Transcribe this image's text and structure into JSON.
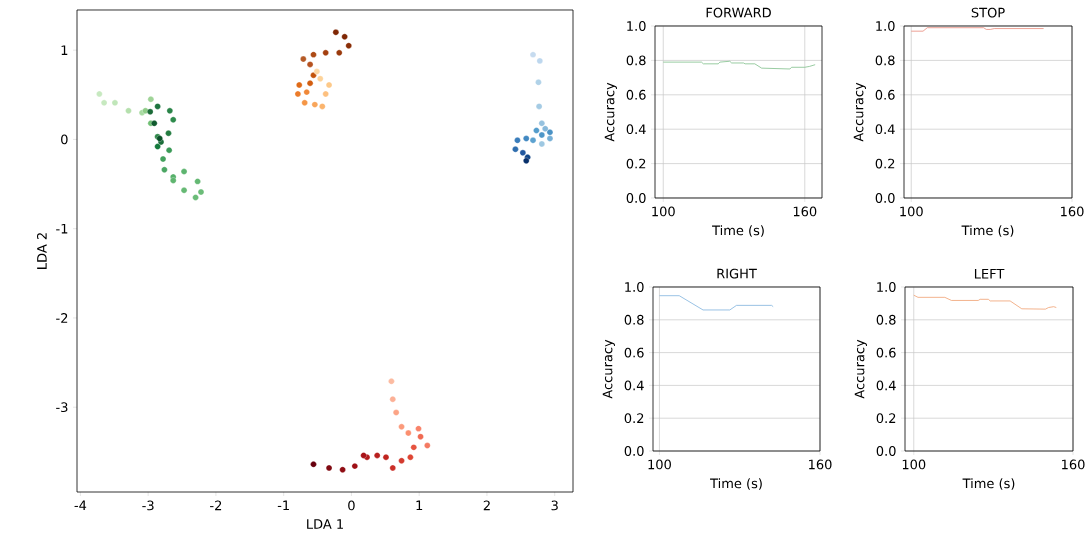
{
  "chart_data": [
    {
      "type": "scatter",
      "xlabel": "LDA 1",
      "ylabel": "LDA 2",
      "marker": "circle",
      "xlim": [
        -4.05,
        3.27
      ],
      "ylim": [
        -3.95,
        1.45
      ],
      "xticks": [
        -4,
        -3,
        -2,
        -1,
        0,
        1,
        2,
        3
      ],
      "yticks": [
        -3,
        -2,
        -1,
        0,
        1
      ],
      "series": [
        {
          "x": [
            -3.72,
            -3.65,
            -3.49,
            -3.29,
            -3.09,
            -2.96,
            -3.04,
            -2.96,
            -2.86,
            -2.81,
            -2.7,
            -2.63,
            -2.68,
            -2.86,
            -2.97,
            -2.91,
            -2.83,
            -2.86,
            -2.69,
            -2.78,
            -2.76,
            -2.63,
            -2.47,
            -2.27,
            -2.22,
            -2.3,
            -2.47,
            -2.63
          ],
          "values": [
            0.51,
            0.41,
            0.41,
            0.32,
            0.3,
            0.45,
            0.32,
            0.18,
            0.03,
            -0.03,
            0.07,
            0.22,
            0.32,
            0.37,
            0.31,
            0.18,
            0.01,
            -0.08,
            -0.12,
            -0.22,
            -0.34,
            -0.42,
            -0.36,
            -0.47,
            -0.59,
            -0.65,
            -0.57,
            -0.46
          ],
          "colors": [
            "#c7e9c0",
            "#c7e9c0",
            "#c0e6b9",
            "#b5e0ad",
            "#a9dba2",
            "#9fd497",
            "#8fcc88",
            "#6fbf73",
            "#2f8a4a",
            "#1b6e3a",
            "#237c40",
            "#2e8b4c",
            "#2a8448",
            "#1e7440",
            "#1b6b38",
            "#0f5a2e",
            "#0b5128",
            "#157a3d",
            "#3a9a57",
            "#44a15d",
            "#4ba663",
            "#56b06a",
            "#5db46f",
            "#64b873",
            "#6bbc78",
            "#6bbc78",
            "#66b974",
            "#5fb56f"
          ]
        },
        {
          "x": [
            -0.23,
            -0.1,
            -0.04,
            -0.18,
            -0.38,
            -0.56,
            -0.71,
            -0.61,
            -0.56,
            -0.61,
            -0.77,
            -0.79,
            -0.66,
            -0.69,
            -0.54,
            -0.43,
            -0.38,
            -0.33,
            -0.46,
            -0.51
          ],
          "values": [
            1.2,
            1.15,
            1.05,
            0.97,
            0.97,
            0.95,
            0.9,
            0.84,
            0.72,
            0.63,
            0.61,
            0.51,
            0.53,
            0.41,
            0.39,
            0.37,
            0.51,
            0.61,
            0.68,
            0.76
          ],
          "colors": [
            "#7f2704",
            "#7f2704",
            "#8a2e07",
            "#9a3a0c",
            "#a44010",
            "#ad4a15",
            "#b55a26",
            "#b65220",
            "#c4540c",
            "#d35e10",
            "#e06a17",
            "#ec7c2a",
            "#f08838",
            "#f59646",
            "#f8a55a",
            "#fbb46d",
            "#fdc07f",
            "#fdc989",
            "#fdd39a",
            "#fdd8a4"
          ]
        },
        {
          "x": [
            2.68,
            2.78,
            2.76,
            2.77,
            2.81,
            2.86,
            2.93,
            2.81,
            2.68,
            2.81,
            2.93,
            2.73,
            2.58,
            2.45,
            2.42,
            2.53,
            2.6,
            2.58
          ],
          "values": [
            0.95,
            0.88,
            0.64,
            0.37,
            0.18,
            0.12,
            0.01,
            -0.05,
            -0.01,
            0.05,
            0.08,
            0.1,
            0.01,
            -0.01,
            -0.11,
            -0.15,
            -0.2,
            -0.24
          ],
          "colors": [
            "#c6dbef",
            "#bdd7ee",
            "#b0d2e8",
            "#a4cbe4",
            "#96c2df",
            "#86b8da",
            "#76afd6",
            "#9ec8e2",
            "#5ca2d0",
            "#4e96c8",
            "#4a92c5",
            "#549dcc",
            "#4289c2",
            "#3a7dbb",
            "#2f6eae",
            "#22589f",
            "#114587",
            "#08306b"
          ]
        },
        {
          "x": [
            0.59,
            0.61,
            0.66,
            0.74,
            0.84,
            0.99,
            1.12,
            1.02,
            0.92,
            0.87,
            0.74,
            0.61,
            0.51,
            0.38,
            0.23,
            0.18,
            0.05,
            -0.13,
            -0.33,
            -0.56
          ],
          "values": [
            -2.71,
            -2.91,
            -3.06,
            -3.22,
            -3.29,
            -3.24,
            -3.43,
            -3.33,
            -3.45,
            -3.56,
            -3.6,
            -3.68,
            -3.56,
            -3.54,
            -3.56,
            -3.54,
            -3.66,
            -3.7,
            -3.68,
            -3.64
          ],
          "colors": [
            "#fcbba1",
            "#fcb096",
            "#fca486",
            "#fb9a7b",
            "#fb8f6f",
            "#f9836a",
            "#f47a62",
            "#f06a52",
            "#e6533f",
            "#de4533",
            "#d33a2e",
            "#cb2e28",
            "#c0251f",
            "#b8201e",
            "#b11b1c",
            "#a81419",
            "#9e1016",
            "#8f0d14",
            "#800a12",
            "#67000d"
          ]
        }
      ]
    },
    {
      "type": "line",
      "title": "FORWARD",
      "xlabel": "Time (s)",
      "ylabel": "Accuracy",
      "grid": true,
      "xlim": [
        96.5,
        167.3
      ],
      "ylim": [
        0,
        1
      ],
      "xticks": [
        100,
        160
      ],
      "yticks": [
        {
          "value": 0,
          "label": "0.0"
        },
        {
          "value": 0.2,
          "label": "0.2"
        },
        {
          "value": 0.4,
          "label": "0.4"
        },
        {
          "value": 0.6,
          "label": "0.6"
        },
        {
          "value": 0.8,
          "label": "0.8"
        },
        {
          "value": 1,
          "label": "1.0"
        }
      ],
      "series": [
        {
          "color": "#7fbf8a",
          "x": [
            100,
            116.2,
            117,
            123.3,
            124,
            128.2,
            129,
            134,
            134.7,
            138.8,
            141.7,
            153.7,
            154.4,
            160,
            162,
            164.4
          ],
          "values": [
            0.79,
            0.79,
            0.78,
            0.78,
            0.79,
            0.795,
            0.785,
            0.785,
            0.78,
            0.78,
            0.755,
            0.75,
            0.76,
            0.76,
            0.765,
            0.775
          ]
        }
      ]
    },
    {
      "type": "line",
      "title": "STOP",
      "xlabel": "Time (s)",
      "ylabel": "Accuracy",
      "grid": true,
      "xlim": [
        97.3,
        160
      ],
      "ylim": [
        0,
        1
      ],
      "xticks": [
        100,
        160
      ],
      "yticks": [
        {
          "value": 0,
          "label": "0.0"
        },
        {
          "value": 0.2,
          "label": "0.2"
        },
        {
          "value": 0.4,
          "label": "0.4"
        },
        {
          "value": 0.6,
          "label": "0.6"
        },
        {
          "value": 0.8,
          "label": "0.8"
        },
        {
          "value": 1,
          "label": "1.0"
        }
      ],
      "series": [
        {
          "color": "#e8897a",
          "x": [
            100,
            104.4,
            106,
            127,
            128,
            129.5,
            131,
            149.4
          ],
          "values": [
            0.97,
            0.97,
            0.99,
            0.99,
            0.98,
            0.98,
            0.985,
            0.985
          ]
        }
      ]
    },
    {
      "type": "line",
      "title": "RIGHT",
      "xlabel": "Time (s)",
      "ylabel": "Accuracy",
      "grid": true,
      "xlim": [
        97.6,
        160
      ],
      "ylim": [
        0,
        1
      ],
      "xticks": [
        100,
        160
      ],
      "yticks": [
        {
          "value": 0,
          "label": "0.0"
        },
        {
          "value": 0.2,
          "label": "0.2"
        },
        {
          "value": 0.4,
          "label": "0.4"
        },
        {
          "value": 0.6,
          "label": "0.6"
        },
        {
          "value": 0.8,
          "label": "0.8"
        },
        {
          "value": 1,
          "label": "1.0"
        }
      ],
      "series": [
        {
          "color": "#7fb2dd",
          "x": [
            100,
            107.4,
            116.3,
            126.3,
            128.8,
            141.9,
            142.5
          ],
          "values": [
            0.947,
            0.947,
            0.86,
            0.86,
            0.888,
            0.888,
            0.88
          ]
        }
      ]
    },
    {
      "type": "line",
      "title": "LEFT",
      "xlabel": "Time (s)",
      "ylabel": "Accuracy",
      "grid": true,
      "xlim": [
        96.7,
        160
      ],
      "ylim": [
        0,
        1
      ],
      "xticks": [
        100,
        160
      ],
      "yticks": [
        {
          "value": 0,
          "label": "0.0"
        },
        {
          "value": 0.2,
          "label": "0.2"
        },
        {
          "value": 0.4,
          "label": "0.4"
        },
        {
          "value": 0.6,
          "label": "0.6"
        },
        {
          "value": 0.8,
          "label": "0.8"
        },
        {
          "value": 1,
          "label": "1.0"
        }
      ],
      "series": [
        {
          "color": "#f0a070",
          "x": [
            100,
            101.6,
            111.7,
            114.2,
            124.3,
            125,
            128.1,
            128.8,
            136.3,
            140.7,
            149.6,
            150.8,
            152.7,
            153.7
          ],
          "values": [
            0.95,
            0.937,
            0.937,
            0.918,
            0.918,
            0.925,
            0.925,
            0.915,
            0.915,
            0.867,
            0.865,
            0.875,
            0.88,
            0.875
          ]
        }
      ]
    }
  ]
}
